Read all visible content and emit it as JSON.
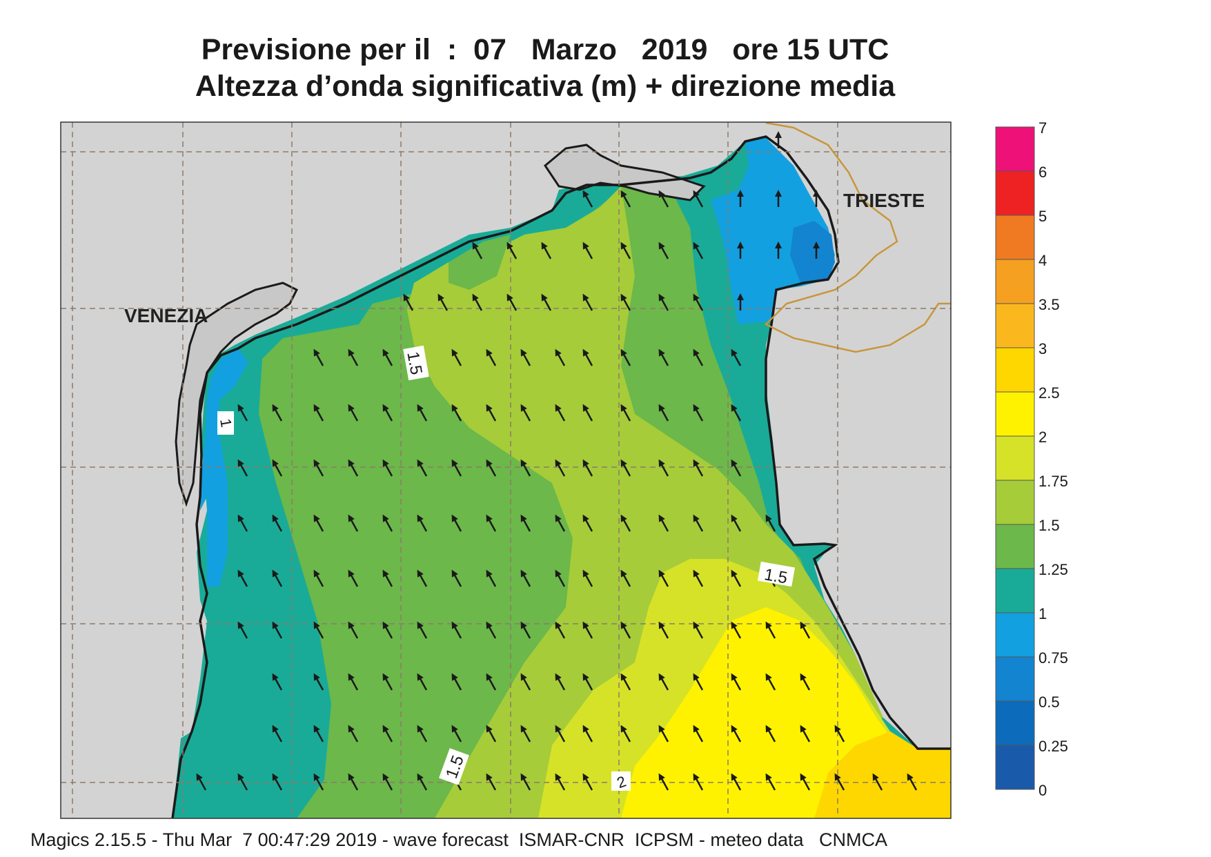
{
  "header": {
    "title_line1": "Previsione per il  :  07   Marzo   2019   ore 15 UTC",
    "title_line2": "Altezza d’onda significativa (m) + direzione media"
  },
  "footer": {
    "credits": "Magics 2.15.5 - Thu Mar  7 00:47:29 2019 - wave forecast  ISMAR-CNR  ICPSM - meteo data   CNMCA"
  },
  "map": {
    "city_labels": [
      "VENEZIA",
      "TRIESTE"
    ],
    "contour_labels": [
      "1.5",
      "1",
      "1.5",
      "1.5",
      "2"
    ],
    "land_color": "#d3d3d3",
    "coast_color": "#1a1a1a",
    "border_color": "#c8963c"
  },
  "legend": {
    "labels": [
      "7",
      "6",
      "5",
      "4",
      "3.5",
      "3",
      "2.5",
      "2",
      "1.75",
      "1.5",
      "1.25",
      "1",
      "0.75",
      "0.5",
      "0.25",
      "0"
    ],
    "colors": [
      "#ee1177",
      "#ee2222",
      "#f07a22",
      "#f5a020",
      "#fbb81e",
      "#ffd700",
      "#fff200",
      "#d6e228",
      "#a6cc3a",
      "#6cb84a",
      "#19ab98",
      "#13a0e0",
      "#1384d0",
      "#0d6bbb",
      "#1a5aaa"
    ]
  }
}
